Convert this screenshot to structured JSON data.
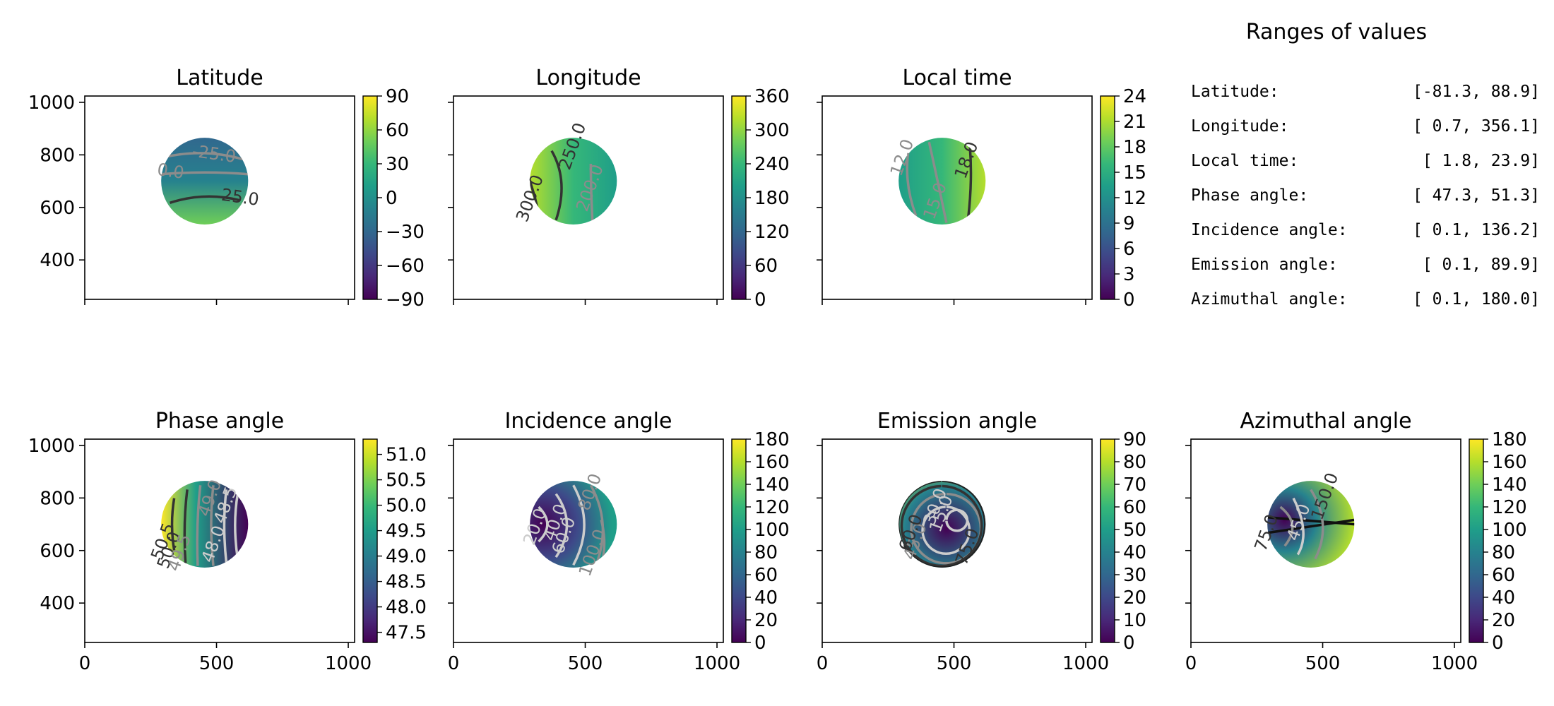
{
  "colors": {
    "viridis": [
      "#440154",
      "#482878",
      "#3e4989",
      "#31688e",
      "#26828e",
      "#1f9e89",
      "#35b779",
      "#6ece58",
      "#b5de2b",
      "#fde725"
    ],
    "contour_dark": "#333333",
    "contour_mid": "#8c8c8c",
    "contour_light": "#cccccc"
  },
  "chart_data": [
    {
      "type": "heatmap",
      "title": "Latitude",
      "xlim": [
        0,
        1024
      ],
      "ylim": [
        250,
        1024
      ],
      "xticks": [],
      "yticks": [
        "1000",
        "800",
        "600",
        "400"
      ],
      "cbar_ticks": [
        "90",
        "60",
        "30",
        "0",
        "−30",
        "−60",
        "−90"
      ],
      "cbar_range": [
        -90,
        90
      ],
      "disk": {
        "center": [
          455,
          700
        ],
        "radius": 165
      },
      "contour_labels": [
        "-25.0",
        "0.0",
        "25.0"
      ]
    },
    {
      "type": "heatmap",
      "title": "Longitude",
      "xlim": [
        0,
        1024
      ],
      "ylim": [
        250,
        1024
      ],
      "xticks": [],
      "yticks": [],
      "cbar_ticks": [
        "360",
        "300",
        "240",
        "180",
        "120",
        "60",
        "0"
      ],
      "cbar_range": [
        0,
        360
      ],
      "disk": {
        "center": [
          455,
          700
        ],
        "radius": 165
      },
      "contour_labels": [
        "250.0",
        "300.0",
        "200.0"
      ]
    },
    {
      "type": "heatmap",
      "title": "Local time",
      "xlim": [
        0,
        1024
      ],
      "ylim": [
        250,
        1024
      ],
      "xticks": [],
      "yticks": [],
      "cbar_ticks": [
        "24",
        "21",
        "18",
        "15",
        "12",
        "9",
        "6",
        "3",
        "0"
      ],
      "cbar_range": [
        0,
        24
      ],
      "disk": {
        "center": [
          455,
          700
        ],
        "radius": 165
      },
      "contour_labels": [
        "12.0",
        "15.0",
        "18.0"
      ]
    },
    {
      "type": "heatmap",
      "title": "Phase angle",
      "xlim": [
        0,
        1024
      ],
      "ylim": [
        250,
        1024
      ],
      "xticks": [
        "0",
        "500",
        "1000"
      ],
      "yticks": [
        "1000",
        "800",
        "600",
        "400"
      ],
      "cbar_ticks": [
        "51.0",
        "50.5",
        "50.0",
        "49.5",
        "49.0",
        "48.5",
        "48.0",
        "47.5"
      ],
      "cbar_range": [
        47.3,
        51.3
      ],
      "disk": {
        "center": [
          455,
          700
        ],
        "radius": 165
      },
      "contour_labels": [
        "49.0",
        "48.5",
        "48.0",
        "50.5",
        "50.0",
        "49.5"
      ]
    },
    {
      "type": "heatmap",
      "title": "Incidence angle",
      "xlim": [
        0,
        1024
      ],
      "ylim": [
        250,
        1024
      ],
      "xticks": [
        "0",
        "500",
        "1000"
      ],
      "yticks": [],
      "cbar_ticks": [
        "180",
        "160",
        "140",
        "120",
        "100",
        "80",
        "60",
        "40",
        "20",
        "0"
      ],
      "cbar_range": [
        0,
        180
      ],
      "disk": {
        "center": [
          455,
          700
        ],
        "radius": 165
      },
      "contour_labels": [
        "20.0",
        "40.0",
        "60.0",
        "80.0",
        "100.0"
      ]
    },
    {
      "type": "heatmap",
      "title": "Emission angle",
      "xlim": [
        0,
        1024
      ],
      "ylim": [
        250,
        1024
      ],
      "xticks": [
        "0",
        "500",
        "1000"
      ],
      "yticks": [],
      "cbar_ticks": [
        "90",
        "80",
        "70",
        "60",
        "50",
        "40",
        "30",
        "20",
        "10",
        "0"
      ],
      "cbar_range": [
        0,
        90
      ],
      "disk": {
        "center": [
          455,
          700
        ],
        "radius": 165
      },
      "contour_labels": [
        "15.0",
        "30.0",
        "45.0",
        "60.0",
        "75.0"
      ]
    },
    {
      "type": "heatmap",
      "title": "Azimuthal angle",
      "xlim": [
        0,
        1024
      ],
      "ylim": [
        250,
        1024
      ],
      "xticks": [
        "0",
        "500",
        "1000"
      ],
      "yticks": [],
      "cbar_ticks": [
        "180",
        "160",
        "140",
        "120",
        "100",
        "80",
        "60",
        "40",
        "20",
        "0"
      ],
      "cbar_range": [
        0,
        180
      ],
      "disk": {
        "center": [
          455,
          700
        ],
        "radius": 165
      },
      "contour_labels": [
        "150.0",
        "75.0",
        "45.0"
      ]
    }
  ],
  "ranges": {
    "title": "Ranges of values",
    "rows": [
      {
        "label": "Latitude:",
        "value": "[-81.3,  88.9]"
      },
      {
        "label": "Longitude:",
        "value": "[  0.7, 356.1]"
      },
      {
        "label": "Local time:",
        "value": "[  1.8,  23.9]"
      },
      {
        "label": "Phase angle:",
        "value": "[ 47.3,  51.3]"
      },
      {
        "label": "Incidence angle:",
        "value": "[  0.1, 136.2]"
      },
      {
        "label": "Emission angle:",
        "value": "[  0.1,  89.9]"
      },
      {
        "label": "Azimuthal angle:",
        "value": "[  0.1, 180.0]"
      }
    ]
  }
}
